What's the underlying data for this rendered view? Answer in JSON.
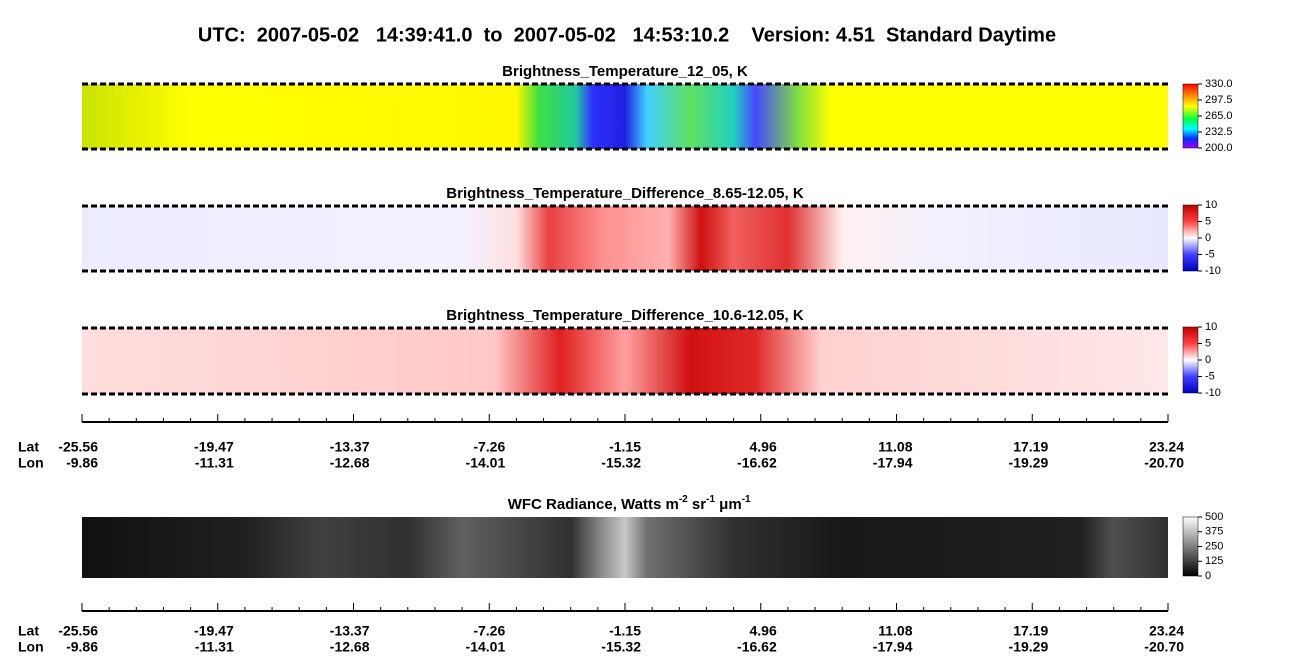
{
  "title": "UTC:  2007-05-02   14:39:41.0  to  2007-05-02   14:53:10.2    Version: 4.51  Standard Daytime",
  "panels": [
    {
      "title": "Brightness_Temperature_12_05, K",
      "colorbar": [
        "330.0",
        "297.5",
        "265.0",
        "232.5",
        "200.0"
      ]
    },
    {
      "title": "Brightness_Temperature_Difference_8.65-12.05, K",
      "colorbar": [
        "10",
        "5",
        "0",
        "-5",
        "-10"
      ]
    },
    {
      "title": "Brightness_Temperature_Difference_10.6-12.05, K",
      "colorbar": [
        "10",
        "5",
        "0",
        "-5",
        "-10"
      ]
    },
    {
      "title_parts": [
        "WFC Radiance, Watts m",
        "-2",
        " sr",
        "-1",
        " μm",
        "-1"
      ],
      "colorbar": [
        "500",
        "375",
        "250",
        "125",
        "0"
      ]
    }
  ],
  "axis": {
    "lat_label": "Lat",
    "lon_label": "Lon",
    "lat": [
      "-25.56",
      "-19.47",
      "-13.37",
      "-7.26",
      "-1.15",
      "4.96",
      "11.08",
      "17.19",
      "23.24"
    ],
    "lon": [
      "-9.86",
      "-11.31",
      "-12.68",
      "-14.01",
      "-15.32",
      "-16.62",
      "-17.94",
      "-19.29",
      "-20.70"
    ]
  }
}
